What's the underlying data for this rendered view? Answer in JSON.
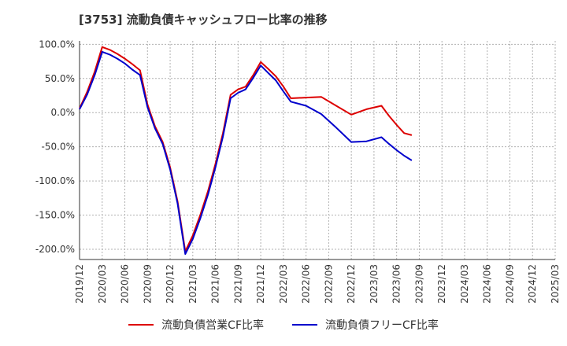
{
  "title": "[3753]  流動負債キャッシュフロー比率の推移",
  "chart_data": {
    "type": "line",
    "x": [
      "2019/12",
      "2020/03",
      "2020/06",
      "2020/09",
      "2020/12",
      "2021/03",
      "2021/06",
      "2021/09",
      "2021/12",
      "2022/03",
      "2022/06",
      "2022/09",
      "2022/12",
      "2023/03",
      "2023/06",
      "2023/09",
      "2023/12",
      "2024/03",
      "2024/06",
      "2024/09",
      "2024/12",
      "2025/03"
    ],
    "ylim": [
      -215,
      105
    ],
    "yticks": [
      100,
      50,
      0,
      -50,
      -100,
      -150,
      -200
    ],
    "ytick_labels": [
      "100.0%",
      "50.0%",
      "0.0%",
      "-50.0%",
      "-100.0%",
      "-150.0%",
      "-200.0%"
    ],
    "grid": true,
    "legend_position": "bottom-center",
    "series": [
      {
        "name": "流動負債営業CF比率",
        "color": "#dd0000",
        "points": [
          [
            0,
            6
          ],
          [
            0.33,
            30
          ],
          [
            0.67,
            60
          ],
          [
            1,
            96
          ],
          [
            1.33,
            92
          ],
          [
            1.67,
            86
          ],
          [
            2,
            79
          ],
          [
            2.33,
            71
          ],
          [
            2.67,
            62
          ],
          [
            3,
            12
          ],
          [
            3.33,
            -20
          ],
          [
            3.67,
            -43
          ],
          [
            4,
            -80
          ],
          [
            4.33,
            -130
          ],
          [
            4.67,
            -203
          ],
          [
            5,
            -180
          ],
          [
            5.33,
            -150
          ],
          [
            5.67,
            -115
          ],
          [
            6,
            -75
          ],
          [
            6.33,
            -30
          ],
          [
            6.67,
            26
          ],
          [
            7,
            34
          ],
          [
            7.33,
            38
          ],
          [
            7.67,
            55
          ],
          [
            8,
            74
          ],
          [
            8.33,
            64
          ],
          [
            8.67,
            53
          ],
          [
            9,
            38
          ],
          [
            9.33,
            21
          ],
          [
            10,
            22
          ],
          [
            10.67,
            23
          ],
          [
            11.33,
            10
          ],
          [
            12,
            -3
          ],
          [
            12.67,
            5
          ],
          [
            13.33,
            10
          ],
          [
            13.67,
            -5
          ],
          [
            14,
            -18
          ],
          [
            14.33,
            -30
          ],
          [
            14.67,
            -33
          ]
        ]
      },
      {
        "name": "流動負債フリーCF比率",
        "color": "#0000cc",
        "points": [
          [
            0,
            5
          ],
          [
            0.33,
            26
          ],
          [
            0.67,
            55
          ],
          [
            1,
            89
          ],
          [
            1.33,
            85
          ],
          [
            1.67,
            79
          ],
          [
            2,
            72
          ],
          [
            2.33,
            63
          ],
          [
            2.67,
            55
          ],
          [
            3,
            8
          ],
          [
            3.33,
            -23
          ],
          [
            3.67,
            -46
          ],
          [
            4,
            -83
          ],
          [
            4.33,
            -133
          ],
          [
            4.67,
            -207
          ],
          [
            5,
            -185
          ],
          [
            5.33,
            -155
          ],
          [
            5.67,
            -120
          ],
          [
            6,
            -80
          ],
          [
            6.33,
            -35
          ],
          [
            6.67,
            21
          ],
          [
            7,
            29
          ],
          [
            7.33,
            34
          ],
          [
            7.67,
            51
          ],
          [
            8,
            69
          ],
          [
            8.33,
            58
          ],
          [
            8.67,
            47
          ],
          [
            9,
            31
          ],
          [
            9.33,
            16
          ],
          [
            10,
            10
          ],
          [
            10.67,
            -2
          ],
          [
            11.33,
            -22
          ],
          [
            12,
            -43
          ],
          [
            12.67,
            -42
          ],
          [
            13.33,
            -36
          ],
          [
            13.67,
            -46
          ],
          [
            14,
            -55
          ],
          [
            14.33,
            -63
          ],
          [
            14.67,
            -70
          ]
        ]
      }
    ]
  }
}
